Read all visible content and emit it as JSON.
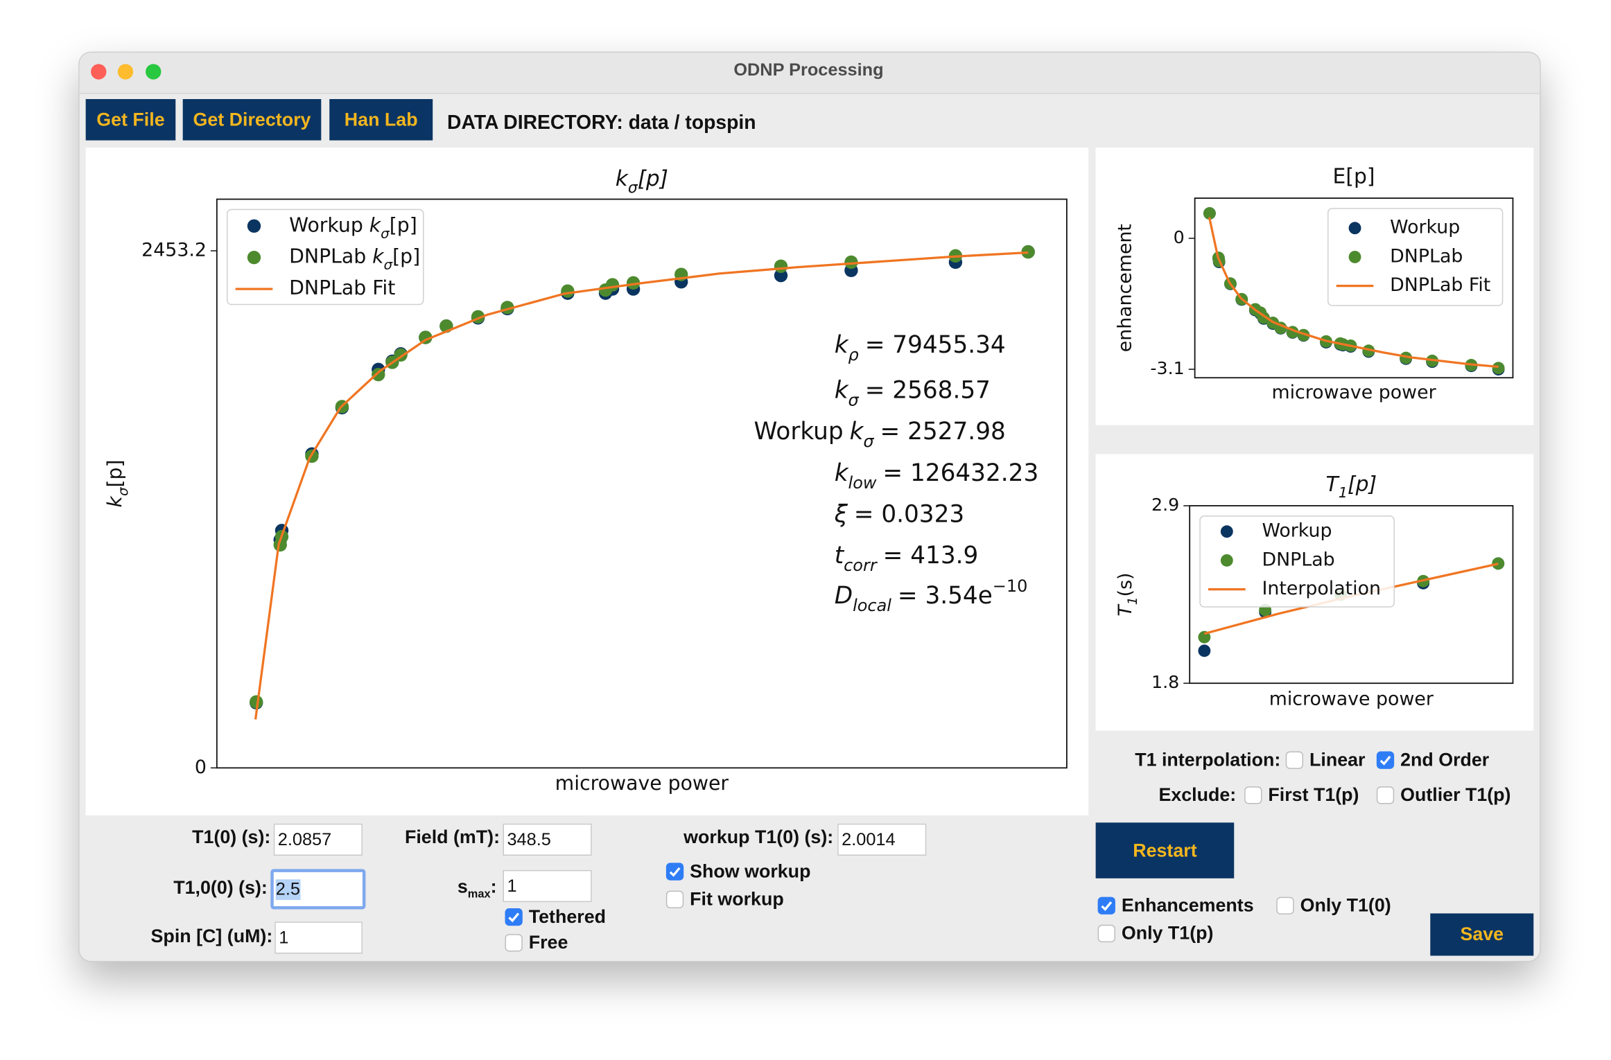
{
  "window": {
    "title": "ODNP Processing"
  },
  "toolbar": {
    "buttons": [
      "Get File",
      "Get Directory",
      "Han Lab"
    ],
    "directory": "DATA DIRECTORY: data / topspin"
  },
  "chart_data": [
    {
      "type": "scatter",
      "title": {
        "symbol": "k",
        "sub": "σ",
        "text": "[p]"
      },
      "x_label": "microwave power",
      "y_label": {
        "symbol": "k",
        "sub": "σ",
        "text": "[p]"
      },
      "xlim": [
        -0.05,
        1.05
      ],
      "ylim": [
        0,
        2698
      ],
      "yticks": [
        0,
        2453.2
      ],
      "legend": "upper left",
      "series": [
        {
          "name": {
            "prefix": "Workup",
            "symbol": "k",
            "sub": "σ",
            "text": "[p]"
          },
          "style": "marker",
          "color": "#0b3561",
          "x": [
            0.001,
            0.032,
            0.034,
            0.073,
            0.112,
            0.159,
            0.177,
            0.188,
            0.22,
            0.247,
            0.288,
            0.326,
            0.404,
            0.453,
            0.462,
            0.489,
            0.551,
            0.68,
            0.771,
            0.906,
            1.0
          ],
          "values": [
            309,
            1082,
            1126,
            1489,
            1709,
            1890,
            1929,
            1964,
            2042,
            2096,
            2135,
            2179,
            2252,
            2252,
            2272,
            2272,
            2306,
            2336,
            2360,
            2399,
            2448
          ]
        },
        {
          "name": {
            "prefix": "DNPLab",
            "symbol": "k",
            "sub": "σ",
            "text": "[p]"
          },
          "style": "marker",
          "color": "#4d8a2e",
          "x": [
            0.001,
            0.032,
            0.034,
            0.073,
            0.112,
            0.159,
            0.177,
            0.188,
            0.22,
            0.247,
            0.288,
            0.326,
            0.404,
            0.453,
            0.462,
            0.489,
            0.551,
            0.68,
            0.771,
            0.906,
            1.0
          ],
          "values": [
            313,
            1058,
            1097,
            1479,
            1714,
            1866,
            1924,
            1959,
            2042,
            2096,
            2140,
            2184,
            2262,
            2267,
            2292,
            2301,
            2341,
            2380,
            2399,
            2429,
            2448
          ]
        },
        {
          "name": "DNPLab Fit",
          "style": "line",
          "color": "#f07522",
          "x": [
            0,
            0.03,
            0.07,
            0.11,
            0.16,
            0.22,
            0.3,
            0.4,
            0.5,
            0.6,
            0.7,
            0.8,
            0.9,
            1.0
          ],
          "values": [
            230,
            1060,
            1470,
            1710,
            1880,
            2030,
            2150,
            2250,
            2300,
            2345,
            2375,
            2400,
            2425,
            2445
          ]
        }
      ],
      "annotations": [
        {
          "symbol": "k",
          "sub": "ρ",
          "text": "= 79455.34"
        },
        {
          "symbol": "k",
          "sub": "σ",
          "text": "= 2568.57"
        },
        {
          "prefix": "Workup",
          "symbol": "k",
          "sub": "σ",
          "text": "= 2527.98"
        },
        {
          "symbol": "k",
          "sub": "low",
          "text": "= 126432.23"
        },
        {
          "symbol": "ξ",
          "text": "= 0.0323"
        },
        {
          "symbol": "t",
          "sub": "corr",
          "text": "= 413.9"
        },
        {
          "symbol": "D",
          "sub": "local",
          "text": "= 3.54e",
          "sup": "−10"
        }
      ]
    },
    {
      "type": "scatter",
      "title": "E[p]",
      "x_label": "microwave power",
      "y_label": "enhancement",
      "xlim": [
        -0.05,
        1.05
      ],
      "ylim": [
        -3.3,
        0.95
      ],
      "yticks": [
        0,
        -3.1
      ],
      "legend": "upper right",
      "series": [
        {
          "name": "Workup",
          "style": "marker",
          "color": "#0b3561",
          "x": [
            0.001,
            0.032,
            0.034,
            0.073,
            0.112,
            0.159,
            0.177,
            0.188,
            0.22,
            0.247,
            0.288,
            0.326,
            0.404,
            0.453,
            0.462,
            0.489,
            0.551,
            0.68,
            0.771,
            0.906,
            1.0
          ],
          "values": [
            0.59,
            -0.47,
            -0.56,
            -1.08,
            -1.45,
            -1.7,
            -1.78,
            -1.9,
            -2.02,
            -2.13,
            -2.23,
            -2.3,
            -2.46,
            -2.51,
            -2.53,
            -2.56,
            -2.68,
            -2.85,
            -2.92,
            -3.02,
            -3.1
          ]
        },
        {
          "name": "DNPLab",
          "style": "marker",
          "color": "#4d8a2e",
          "x": [
            0.001,
            0.032,
            0.034,
            0.073,
            0.112,
            0.159,
            0.177,
            0.188,
            0.22,
            0.247,
            0.288,
            0.326,
            0.404,
            0.453,
            0.462,
            0.489,
            0.551,
            0.68,
            0.771,
            0.906,
            1.0
          ],
          "values": [
            0.59,
            -0.46,
            -0.54,
            -1.07,
            -1.44,
            -1.68,
            -1.76,
            -1.88,
            -2.0,
            -2.12,
            -2.22,
            -2.29,
            -2.44,
            -2.49,
            -2.51,
            -2.54,
            -2.66,
            -2.83,
            -2.9,
            -3.0,
            -3.07
          ]
        },
        {
          "name": "DNPLab Fit",
          "style": "line",
          "color": "#f07522",
          "x": [
            0,
            0.03,
            0.07,
            0.11,
            0.16,
            0.22,
            0.3,
            0.4,
            0.5,
            0.6,
            0.7,
            0.8,
            0.9,
            1.0
          ],
          "values": [
            0.5,
            -0.45,
            -1.05,
            -1.42,
            -1.7,
            -1.98,
            -2.2,
            -2.42,
            -2.56,
            -2.7,
            -2.82,
            -2.9,
            -2.98,
            -3.04
          ]
        }
      ]
    },
    {
      "type": "scatter",
      "title": {
        "symbol": "T",
        "sub": "1",
        "text": "[p]"
      },
      "x_label": "microwave power",
      "y_label": {
        "symbol": "T",
        "sub": "1",
        "text": "(s)"
      },
      "xlim": [
        -0.05,
        1.05
      ],
      "ylim": [
        1.8,
        2.9
      ],
      "yticks": [
        1.8,
        2.9
      ],
      "legend": "upper left",
      "series": [
        {
          "name": "Workup",
          "style": "marker",
          "color": "#0b3561",
          "x": [
            0,
            0.207,
            0.464,
            0.745,
            1.0
          ],
          "values": [
            2.0014,
            2.241,
            2.35,
            2.42,
            2.542
          ]
        },
        {
          "name": "DNPLab",
          "style": "marker",
          "color": "#4d8a2e",
          "x": [
            0,
            0.207,
            0.464,
            0.745,
            1.0
          ],
          "values": [
            2.0857,
            2.254,
            2.35,
            2.433,
            2.542
          ]
        },
        {
          "name": "Interpolation",
          "style": "line",
          "color": "#f07522",
          "x": [
            0,
            0.25,
            0.5,
            0.75,
            1.0
          ],
          "values": [
            2.107,
            2.23,
            2.34,
            2.44,
            2.54
          ]
        }
      ]
    }
  ],
  "form": {
    "t1_0": {
      "label": "T1(0) (s):",
      "value": 2.0857
    },
    "t10_0": {
      "label": "T1,0(0) (s):",
      "value": 2.5
    },
    "spin": {
      "label": "Spin [C] (uM):",
      "value": 1
    },
    "field": {
      "label": "Field (mT):",
      "value": 348.5
    },
    "smax": {
      "label": {
        "symbol": "s",
        "sub": "max",
        "text": ":"
      },
      "value": 1
    },
    "tethered": {
      "label": "Tethered",
      "checked": true
    },
    "free": {
      "label": "Free",
      "checked": false
    },
    "workup_t1": {
      "label": "workup T1(0) (s):",
      "value": 2.0014
    },
    "show_workup": {
      "label": "Show workup",
      "checked": true
    },
    "fit_workup": {
      "label": "Fit workup",
      "checked": false
    },
    "t1_interpolation": {
      "label": "T1 interpolation:",
      "options": [
        {
          "label": "Linear",
          "checked": false
        },
        {
          "label": "2nd Order",
          "checked": true
        }
      ]
    },
    "exclude": {
      "label": "Exclude:",
      "options": [
        {
          "label": "First T1(p)",
          "checked": false
        },
        {
          "label": "Outlier T1(p)",
          "checked": false
        }
      ]
    },
    "restart": "Restart",
    "enhancements": {
      "label": "Enhancements",
      "checked": true
    },
    "only_t1_0": {
      "label": "Only T1(0)",
      "checked": false
    },
    "only_t1_p": {
      "label": "Only T1(p)",
      "checked": false
    },
    "save": "Save"
  }
}
